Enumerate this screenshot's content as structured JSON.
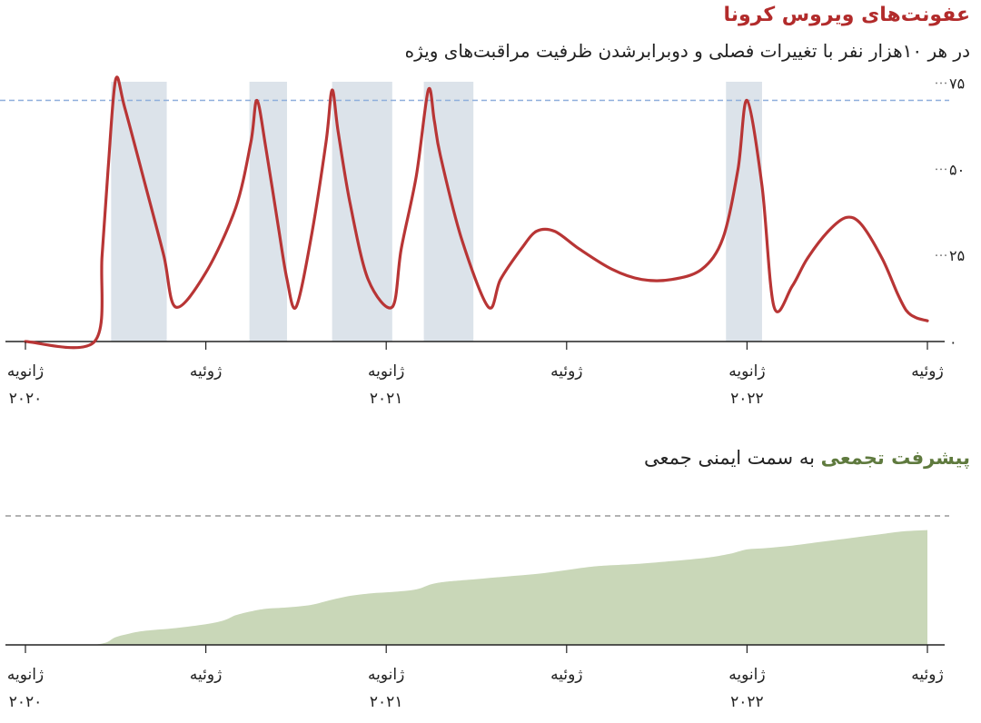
{
  "header": {
    "title": "عفونت‌های ویروس کرونا",
    "subtitle": "در هر ۱۰هزار نفر با تغییرات فصلی و دوبرابرشدن ظرفیت مراقبت‌های ویژه"
  },
  "colors": {
    "infection_line": "#b83535",
    "shade": "#dce3ea",
    "capacity_line": "#8eaedc",
    "immunity_fill": "#c9d7b8",
    "axis": "#222222",
    "title_red": "#b22b2b",
    "title_green": "#5f7a3e"
  },
  "chart_data": [
    {
      "type": "line",
      "title": "عفونت‌های ویروس کرونا",
      "subtitle": "در هر ۱۰هزار نفر با تغییرات فصلی و دوبرابرشدن ظرفیت مراقبت‌های ویژه",
      "x_unit": "months since Jan 2020",
      "xlim": [
        0,
        30
      ],
      "ylim": [
        0,
        78
      ],
      "yticks": [
        {
          "value": 0,
          "label": "۰"
        },
        {
          "value": 25,
          "label": "۲۵"
        },
        {
          "value": 50,
          "label": "۵۰"
        },
        {
          "value": 75,
          "label": "۷۵"
        }
      ],
      "xticks": [
        {
          "value": 0,
          "month": "ژانویه",
          "year": "۲۰۲۰"
        },
        {
          "value": 6,
          "month": "ژوئیه",
          "year": ""
        },
        {
          "value": 12,
          "month": "ژانویه",
          "year": "۲۰۲۱"
        },
        {
          "value": 18,
          "month": "ژوئیه",
          "year": ""
        },
        {
          "value": 24,
          "month": "ژانویه",
          "year": "۲۰۲۲"
        },
        {
          "value": 30,
          "month": "ژوئیه",
          "year": ""
        }
      ],
      "capacity_level": 70,
      "series": [
        {
          "x": [
            0,
            2.3,
            2.55,
            2.75,
            3.0,
            3.3,
            4.0,
            4.6,
            5.0,
            6.0,
            7.0,
            7.5,
            7.7,
            8.0,
            8.4,
            8.7,
            9.0,
            9.5,
            10.0,
            10.2,
            10.4,
            10.8,
            11.4,
            12.2,
            12.5,
            13.0,
            13.4,
            13.6,
            13.8,
            14.5,
            15.4,
            15.8,
            16.5,
            17.0,
            17.6,
            18.4,
            19.5,
            20.5,
            21.5,
            22.5,
            23.2,
            23.7,
            24.0,
            24.5,
            24.9,
            25.5,
            26.0,
            26.7,
            27.3,
            27.8,
            28.5,
            29.0,
            29.3,
            29.6,
            30.0
          ],
          "y": [
            0,
            0,
            25,
            50,
            76,
            68,
            45,
            25,
            10,
            20,
            39,
            58,
            70,
            56,
            34,
            18,
            10,
            30,
            58,
            73,
            61,
            40,
            18,
            10,
            27,
            48,
            73,
            64,
            54,
            30,
            10,
            18,
            27,
            32,
            32,
            27,
            21,
            18,
            18,
            21,
            30,
            50,
            70,
            45,
            10,
            16,
            24,
            32,
            36,
            34,
            24,
            14,
            9,
            7,
            6
          ]
        }
      ],
      "shaded_regions": [
        [
          2.85,
          4.7
        ],
        [
          7.45,
          8.7
        ],
        [
          10.2,
          12.2
        ],
        [
          13.25,
          14.9
        ],
        [
          23.3,
          24.5
        ]
      ]
    },
    {
      "type": "area",
      "title": "پیشرفت تجمعی به سمت ایمنی جمعی",
      "x_unit": "months since Jan 2020",
      "xlim": [
        0,
        30
      ],
      "ylim": [
        0,
        100
      ],
      "threshold_level": 100,
      "xticks": [
        {
          "value": 0,
          "month": "ژانویه",
          "year": "۲۰۲۰"
        },
        {
          "value": 6,
          "month": "ژوئیه",
          "year": ""
        },
        {
          "value": 12,
          "month": "ژانویه",
          "year": "۲۰۲۱"
        },
        {
          "value": 18,
          "month": "ژوئیه",
          "year": ""
        },
        {
          "value": 24,
          "month": "ژانویه",
          "year": "۲۰۲۲"
        },
        {
          "value": 30,
          "month": "ژوئیه",
          "year": ""
        }
      ],
      "series": [
        {
          "x": [
            2.3,
            2.7,
            3.0,
            3.5,
            4.0,
            5.0,
            6.0,
            6.6,
            7.0,
            7.5,
            8.0,
            8.7,
            9.5,
            10.2,
            10.8,
            11.5,
            12.2,
            13.0,
            13.5,
            14.0,
            15.0,
            16.0,
            17.0,
            18.0,
            19.0,
            20.5,
            22.0,
            22.8,
            23.5,
            24.0,
            24.6,
            25.5,
            26.5,
            27.5,
            28.5,
            29.2,
            30.0
          ],
          "y": [
            0,
            2,
            6,
            9,
            11,
            13,
            16,
            19,
            23,
            26,
            28,
            29,
            31,
            35,
            38,
            40,
            41,
            43,
            47,
            49,
            51,
            53,
            55,
            58,
            61,
            63,
            66,
            68,
            71,
            74,
            75,
            77,
            80,
            83,
            86,
            88,
            89
          ]
        }
      ]
    }
  ],
  "chart2_title": {
    "highlight": "پیشرفت تجمعی",
    "rest": " به سمت ایمنی جمعی"
  }
}
